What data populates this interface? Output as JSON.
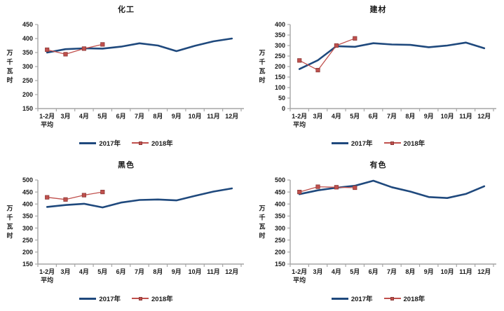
{
  "colors": {
    "series_2017": "#1F497D",
    "series_2018": "#C0504D",
    "marker_fill": "#C0504D",
    "marker_border": "#8C3A38",
    "axis_line": "#A6A6A6",
    "text": "#1A1A1A",
    "background": "#FFFFFF"
  },
  "y_axis_title": "万千瓦时",
  "first_category_lines": [
    "1-2月",
    "平均"
  ],
  "legend": {
    "label_2017": "2017年",
    "label_2018": "2018年"
  },
  "chart_data": [
    {
      "type": "line",
      "title": "化工",
      "categories": [
        "1-2月平均",
        "3月",
        "4月",
        "5月",
        "6月",
        "7月",
        "8月",
        "9月",
        "10月",
        "11月",
        "12月"
      ],
      "xlabel": "",
      "ylabel": "万千瓦时",
      "ylim": [
        150,
        450
      ],
      "ytick_step": 50,
      "grid": false,
      "legend_position": "bottom",
      "series": [
        {
          "name": "2017年",
          "marker": "none",
          "values": [
            350,
            362,
            365,
            364,
            371,
            383,
            375,
            355,
            374,
            390,
            400
          ]
        },
        {
          "name": "2018年",
          "marker": "square",
          "values": [
            360,
            344,
            364,
            379
          ]
        }
      ]
    },
    {
      "type": "line",
      "title": "建材",
      "categories": [
        "1-2月平均",
        "3月",
        "4月",
        "5月",
        "6月",
        "7月",
        "8月",
        "9月",
        "10月",
        "11月",
        "12月"
      ],
      "xlabel": "",
      "ylabel": "万千瓦时",
      "ylim": [
        0,
        400
      ],
      "ytick_step": 50,
      "grid": false,
      "legend_position": "bottom",
      "series": [
        {
          "name": "2017年",
          "marker": "none",
          "values": [
            188,
            230,
            297,
            294,
            311,
            305,
            303,
            292,
            300,
            314,
            287
          ]
        },
        {
          "name": "2018年",
          "marker": "square",
          "values": [
            229,
            183,
            300,
            334
          ]
        }
      ]
    },
    {
      "type": "line",
      "title": "黑色",
      "categories": [
        "1-2月平均",
        "3月",
        "4月",
        "5月",
        "6月",
        "7月",
        "8月",
        "9月",
        "10月",
        "11月",
        "12月"
      ],
      "xlabel": "",
      "ylabel": "万千瓦时",
      "ylim": [
        150,
        500
      ],
      "ytick_step": 50,
      "grid": false,
      "legend_position": "bottom",
      "series": [
        {
          "name": "2017年",
          "marker": "none",
          "values": [
            388,
            396,
            401,
            386,
            406,
            417,
            419,
            415,
            434,
            452,
            465
          ]
        },
        {
          "name": "2018年",
          "marker": "square",
          "values": [
            428,
            419,
            437,
            450
          ]
        }
      ]
    },
    {
      "type": "line",
      "title": "有色",
      "categories": [
        "1-2月平均",
        "3月",
        "4月",
        "5月",
        "6月",
        "7月",
        "8月",
        "9月",
        "10月",
        "11月",
        "12月"
      ],
      "xlabel": "",
      "ylabel": "万千瓦时",
      "ylim": [
        150,
        500
      ],
      "ytick_step": 50,
      "grid": false,
      "legend_position": "bottom",
      "series": [
        {
          "name": "2017年",
          "marker": "none",
          "values": [
            441,
            457,
            468,
            476,
            497,
            470,
            452,
            429,
            425,
            442,
            474
          ]
        },
        {
          "name": "2018年",
          "marker": "square",
          "values": [
            450,
            472,
            470,
            468
          ]
        }
      ]
    }
  ]
}
